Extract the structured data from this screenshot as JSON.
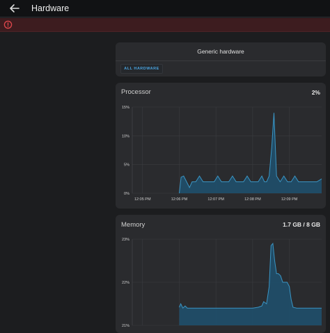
{
  "header": {
    "title": "Hardware",
    "back_icon": "arrow-left-icon"
  },
  "alert": {
    "icon": "error-circle-icon",
    "color": "#e0474c"
  },
  "generic_card": {
    "title": "Generic hardware",
    "button_label": "ALL HARDWARE"
  },
  "processor": {
    "label": "Processor",
    "value": "2%"
  },
  "memory": {
    "label": "Memory",
    "value": "1.7 GB / 8 GB"
  },
  "colors": {
    "accent": "#4aa3df",
    "series_line": "#3a95c4",
    "series_fill": "#1f4f6b"
  },
  "chart_data": [
    {
      "type": "area",
      "title": "",
      "xlabel": "",
      "ylabel": "",
      "ylim": [
        0,
        15
      ],
      "yticks": [
        0,
        5,
        10,
        15
      ],
      "ytick_labels": [
        "0%",
        "5%",
        "10%",
        "15%"
      ],
      "xticks": [
        0,
        1,
        2,
        3,
        4
      ],
      "xtick_labels": [
        "12:05 PM",
        "12:06 PM",
        "12:07 PM",
        "12:08 PM",
        "12:09 PM"
      ],
      "xlim": [
        -0.28,
        4.88
      ],
      "grid": true,
      "series": [
        {
          "x": [
            1.0,
            1.05,
            1.12,
            1.2,
            1.28,
            1.35,
            1.45,
            1.55,
            1.65,
            1.75,
            1.85,
            1.95,
            2.05,
            2.15,
            2.25,
            2.35,
            2.45,
            2.55,
            2.65,
            2.75,
            2.85,
            2.95,
            3.05,
            3.15,
            3.25,
            3.32,
            3.38,
            3.45,
            3.52,
            3.58,
            3.65,
            3.75,
            3.85,
            3.95,
            4.05,
            4.15,
            4.25,
            4.35,
            4.45,
            4.55,
            4.65,
            4.75,
            4.88
          ],
          "values": [
            0,
            2.8,
            3.0,
            2.0,
            1.0,
            2.0,
            2.0,
            3.0,
            2.0,
            2.0,
            2.0,
            2.0,
            3.0,
            2.0,
            2.0,
            2.0,
            3.0,
            2.0,
            2.0,
            2.0,
            3.0,
            2.0,
            2.0,
            2.0,
            3.0,
            2.0,
            2.0,
            3.0,
            8.0,
            14.0,
            3.0,
            2.0,
            3.0,
            2.0,
            2.0,
            3.0,
            2.0,
            2.0,
            2.0,
            2.0,
            2.0,
            2.0,
            2.5
          ]
        }
      ]
    },
    {
      "type": "area",
      "title": "",
      "xlabel": "",
      "ylabel": "",
      "ylim": [
        21,
        23
      ],
      "yticks": [
        21,
        22,
        23
      ],
      "ytick_labels": [
        "21%",
        "22%",
        "23%"
      ],
      "xlim": [
        -0.28,
        4.88
      ],
      "grid": true,
      "series": [
        {
          "x": [
            1.0,
            1.04,
            1.1,
            1.16,
            1.22,
            1.3,
            2.0,
            2.5,
            3.0,
            3.15,
            3.25,
            3.3,
            3.38,
            3.45,
            3.5,
            3.55,
            3.6,
            3.65,
            3.7,
            3.76,
            3.82,
            3.88,
            3.94,
            4.0,
            4.05,
            4.1,
            4.2,
            4.88
          ],
          "values": [
            21.42,
            21.5,
            21.4,
            21.45,
            21.4,
            21.4,
            21.4,
            21.4,
            21.4,
            21.42,
            21.45,
            21.55,
            21.5,
            21.9,
            22.85,
            22.9,
            22.5,
            22.2,
            22.2,
            22.15,
            22.0,
            22.0,
            22.0,
            21.9,
            21.6,
            21.42,
            21.4,
            21.4
          ]
        }
      ]
    }
  ]
}
